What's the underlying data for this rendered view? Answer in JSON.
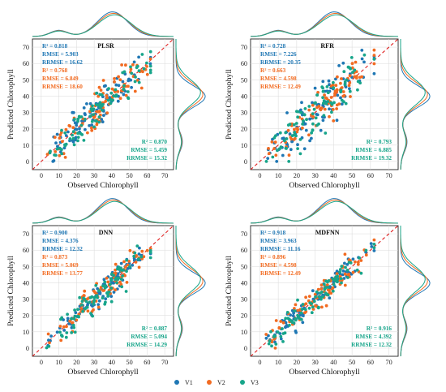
{
  "colors": {
    "V1": "#1f77b4",
    "V2": "#f26b21",
    "V3": "#17a58a"
  },
  "legend": [
    {
      "name": "V1",
      "color": "#1f77b4"
    },
    {
      "name": "V2",
      "color": "#f26b21"
    },
    {
      "name": "V3",
      "color": "#17a58a"
    }
  ],
  "chart_data": [
    {
      "type": "scatter",
      "title": "PLSR",
      "xlabel": "Observed Chlorophyll",
      "ylabel": "Predicted Chlorophyll",
      "xlim": [
        -5,
        75
      ],
      "ylim": [
        -5,
        75
      ],
      "xticks": [
        "0",
        "10",
        "20",
        "30",
        "40",
        "50",
        "60",
        "70"
      ],
      "yticks": [
        "0",
        "10",
        "20",
        "30",
        "40",
        "50",
        "60",
        "70"
      ],
      "grid": true,
      "reference_line": "1:1",
      "seed": 11,
      "series": [
        {
          "name": "V1",
          "stats": [
            "R² = 0.818",
            "RMSE = 5.903",
            "RRMSE = 16.62"
          ]
        },
        {
          "name": "V2",
          "stats": [
            "R² = 0.768",
            "RMSE = 6.849",
            "RRMSE = 18.60"
          ]
        },
        {
          "name": "V3",
          "stats": [
            "R² = 0.870",
            "RMSE = 5.459",
            "RRMSE = 15.32"
          ]
        }
      ]
    },
    {
      "type": "scatter",
      "title": "RFR",
      "xlabel": "Observed Chlorophyll",
      "ylabel": "Predicted Chlorophyll",
      "xlim": [
        -5,
        75
      ],
      "ylim": [
        -5,
        75
      ],
      "xticks": [
        "0",
        "10",
        "20",
        "30",
        "40",
        "50",
        "60",
        "70"
      ],
      "yticks": [
        "0",
        "10",
        "20",
        "30",
        "40",
        "50",
        "60",
        "70"
      ],
      "grid": true,
      "reference_line": "1:1",
      "seed": 23,
      "series": [
        {
          "name": "V1",
          "stats": [
            "R² = 0.728",
            "RMSE = 7.226",
            "RRMSE = 20.35"
          ]
        },
        {
          "name": "V2",
          "stats": [
            "R² = 0.663",
            "RMSE = 4.598",
            "RRMSE = 12.49"
          ]
        },
        {
          "name": "V3",
          "stats": [
            "R² = 0.793",
            "RMSE = 6.885",
            "RRMSE = 19.32"
          ]
        }
      ]
    },
    {
      "type": "scatter",
      "title": "DNN",
      "xlabel": "Observed Chlorophyll",
      "ylabel": "Predicted Chlorophyll",
      "xlim": [
        -5,
        75
      ],
      "ylim": [
        -5,
        75
      ],
      "xticks": [
        "0",
        "10",
        "20",
        "30",
        "40",
        "50",
        "60",
        "70"
      ],
      "yticks": [
        "0",
        "10",
        "20",
        "30",
        "40",
        "50",
        "60",
        "70"
      ],
      "grid": true,
      "reference_line": "1:1",
      "seed": 37,
      "series": [
        {
          "name": "V1",
          "stats": [
            "R² = 0.900",
            "RMSE = 4.376",
            "RRMSE = 12.32"
          ]
        },
        {
          "name": "V2",
          "stats": [
            "R² = 0.873",
            "RMSE = 5.069",
            "RRMSE = 13.77"
          ]
        },
        {
          "name": "V3",
          "stats": [
            "R² = 0.887",
            "RMSE = 5.094",
            "RRMSE = 14.29"
          ]
        }
      ]
    },
    {
      "type": "scatter",
      "title": "MDFNN",
      "xlabel": "Observed Chlorophyll",
      "ylabel": "Predicted Chlorophyll",
      "xlim": [
        -5,
        75
      ],
      "ylim": [
        -5,
        75
      ],
      "xticks": [
        "0",
        "10",
        "20",
        "30",
        "40",
        "50",
        "60",
        "70"
      ],
      "yticks": [
        "0",
        "10",
        "20",
        "30",
        "40",
        "50",
        "60",
        "70"
      ],
      "grid": true,
      "reference_line": "1:1",
      "seed": 53,
      "series": [
        {
          "name": "V1",
          "stats": [
            "R² = 0.918",
            "RMSE = 3.963",
            "RRMSE = 11.16"
          ]
        },
        {
          "name": "V2",
          "stats": [
            "R² = 0.896",
            "RMSE = 4.598",
            "RRMSE = 12.49"
          ]
        },
        {
          "name": "V3",
          "stats": [
            "R² = 0.916",
            "RMSE = 4.392",
            "RRMSE = 12.32"
          ]
        }
      ]
    }
  ]
}
